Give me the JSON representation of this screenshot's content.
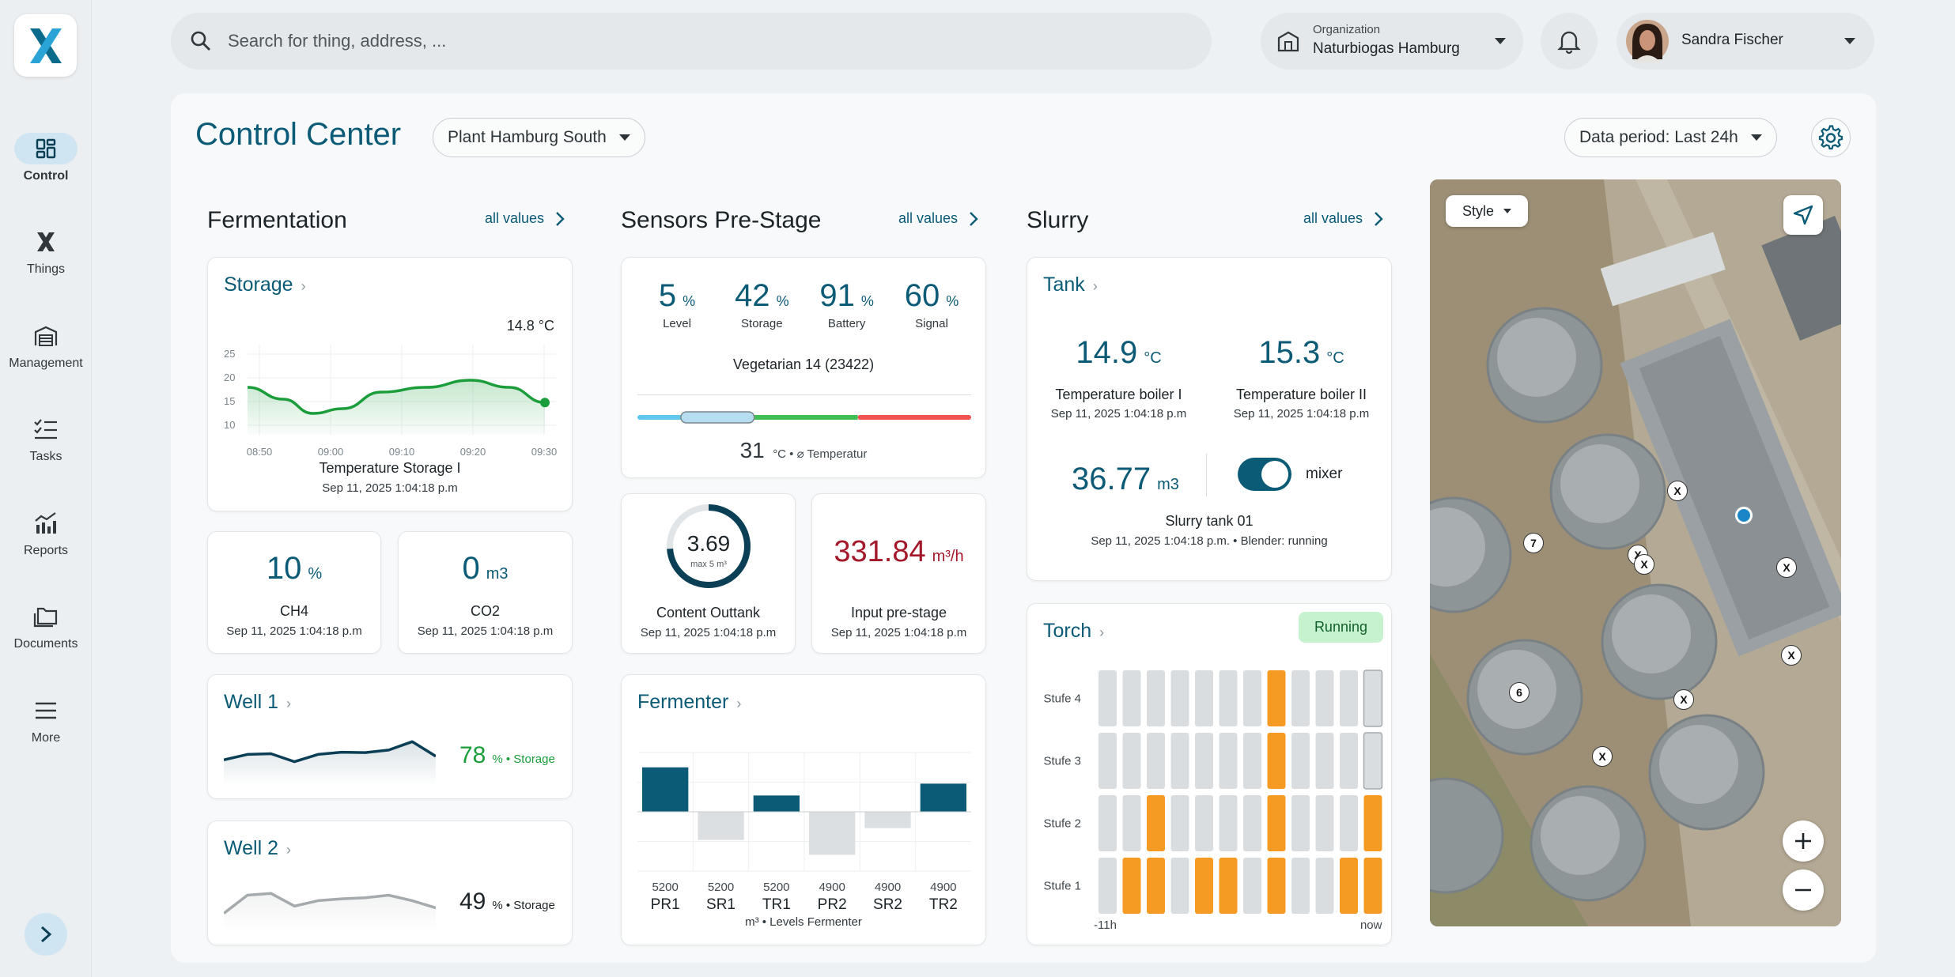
{
  "nav": {
    "items": [
      {
        "label": "Control",
        "icon": "dashboard-icon"
      },
      {
        "label": "Things",
        "icon": "things-icon"
      },
      {
        "label": "Management",
        "icon": "warehouse-icon"
      },
      {
        "label": "Tasks",
        "icon": "checklist-icon"
      },
      {
        "label": "Reports",
        "icon": "reports-icon"
      },
      {
        "label": "Documents",
        "icon": "folder-icon"
      },
      {
        "label": "More",
        "icon": "menu-icon"
      }
    ]
  },
  "header": {
    "search_placeholder": "Search for thing, address, ...",
    "org_caption": "Organization",
    "org_name": "Naturbiogas Hamburg",
    "user_name": "Sandra Fischer"
  },
  "page": {
    "title": "Control Center",
    "plant": "Plant Hamburg South",
    "period": "Data period: Last 24h"
  },
  "colors": {
    "accent": "#0b5a76",
    "green": "#1a9d3a",
    "orange": "#f59a23",
    "red": "#a3182a"
  },
  "fermentation": {
    "title": "Fermentation",
    "all_values": "all values",
    "storage": {
      "title": "Storage",
      "current": "14.8 °C",
      "caption": "Temperature Storage I",
      "date": "Sep 11, 2025 1:04:18 p.m",
      "chart_data": {
        "type": "area",
        "x": [
          "08:50",
          "09:00",
          "09:10",
          "09:20",
          "09:30"
        ],
        "y_ticks": [
          25,
          20,
          15,
          10
        ],
        "ylim": [
          8,
          27
        ],
        "points": [
          [
            0,
            18
          ],
          [
            0.12,
            15.5
          ],
          [
            0.22,
            12.5
          ],
          [
            0.32,
            13.5
          ],
          [
            0.45,
            17
          ],
          [
            0.6,
            18
          ],
          [
            0.75,
            19.5
          ],
          [
            0.88,
            18
          ],
          [
            1,
            14.8
          ]
        ]
      }
    },
    "ch4": {
      "value": "10",
      "unit": "%",
      "label": "CH4",
      "date": "Sep 11, 2025 1:04:18 p.m"
    },
    "co2": {
      "value": "0",
      "unit": "m3",
      "label": "CO2",
      "date": "Sep 11, 2025 1:04:18 p.m"
    },
    "well1": {
      "title": "Well 1",
      "value": "78",
      "suffix": "% • Storage",
      "spark": [
        0.45,
        0.6,
        0.62,
        0.4,
        0.6,
        0.66,
        0.65,
        0.72,
        0.95,
        0.55
      ]
    },
    "well2": {
      "title": "Well 2",
      "value": "49",
      "suffix": "% • Storage",
      "spark": [
        0.25,
        0.75,
        0.8,
        0.45,
        0.6,
        0.65,
        0.68,
        0.75,
        0.6,
        0.4
      ]
    }
  },
  "sensors": {
    "title": "Sensors Pre-Stage",
    "all_values": "all values",
    "stats": [
      {
        "value": "5",
        "unit": "%",
        "label": "Level"
      },
      {
        "value": "42",
        "unit": "%",
        "label": "Storage"
      },
      {
        "value": "91",
        "unit": "%",
        "label": "Battery"
      },
      {
        "value": "60",
        "unit": "%",
        "label": "Signal"
      }
    ],
    "device": "Vegetarian 14 (23422)",
    "temp_value": "31",
    "temp_label": "°C • ⌀ Temperatur",
    "temp_range": {
      "min": 0,
      "max": 80,
      "blue_end": 0.35,
      "green_end": 0.66,
      "marker_start": 0.13,
      "marker_end": 0.35
    },
    "outtank": {
      "value": "3.69",
      "max": "max 5 m³",
      "fraction": 0.738,
      "label": "Content Outtank",
      "date": "Sep 11, 2025 1:04:18 p.m"
    },
    "input": {
      "value": "331.84",
      "unit": "m³/h",
      "label": "Input pre-stage",
      "date": "Sep 11, 2025 1:04:18 p.m"
    }
  },
  "fermenter": {
    "title": "Fermenter",
    "caption": "m³ • Levels Fermenter",
    "chart_data": {
      "type": "bar",
      "categories": [
        "PR1",
        "SR1",
        "TR1",
        "PR2",
        "SR2",
        "TR2"
      ],
      "top_labels": [
        "5200",
        "5200",
        "5200",
        "4900",
        "4900",
        "4900"
      ],
      "values": [
        60,
        -38,
        22,
        -58,
        -22,
        38
      ],
      "ylim": [
        -80,
        80
      ]
    }
  },
  "slurry": {
    "title": "Slurry",
    "all_values": "all values",
    "tank": {
      "title": "Tank",
      "b1_value": "14.9",
      "b1_unit": "°C",
      "b1_label": "Temperature boiler I",
      "b1_date": "Sep 11, 2025 1:04:18 p.m",
      "b2_value": "15.3",
      "b2_unit": "°C",
      "b2_label": "Temperature boiler II",
      "b2_date": "Sep 11, 2025 1:04:18 p.m",
      "level_value": "36.77",
      "level_unit": "m3",
      "mixer_label": "mixer",
      "tank_name": "Slurry tank 01",
      "tank_status": "Sep 11, 2025 1:04:18 p.m. • Blender: running"
    },
    "torch": {
      "title": "Torch",
      "status": "Running",
      "rows": [
        "Stufe 4",
        "Stufe 3",
        "Stufe 2",
        "Stufe 1"
      ],
      "x_start": "-11h",
      "x_end": "now",
      "levels": [
        0,
        1,
        2,
        0,
        1,
        1,
        0,
        4,
        0,
        0,
        1,
        2
      ]
    }
  },
  "map": {
    "style_label": "Style",
    "markers": [
      "X",
      "7",
      "X",
      "X",
      "X",
      "X",
      "6",
      "X",
      "X"
    ]
  }
}
